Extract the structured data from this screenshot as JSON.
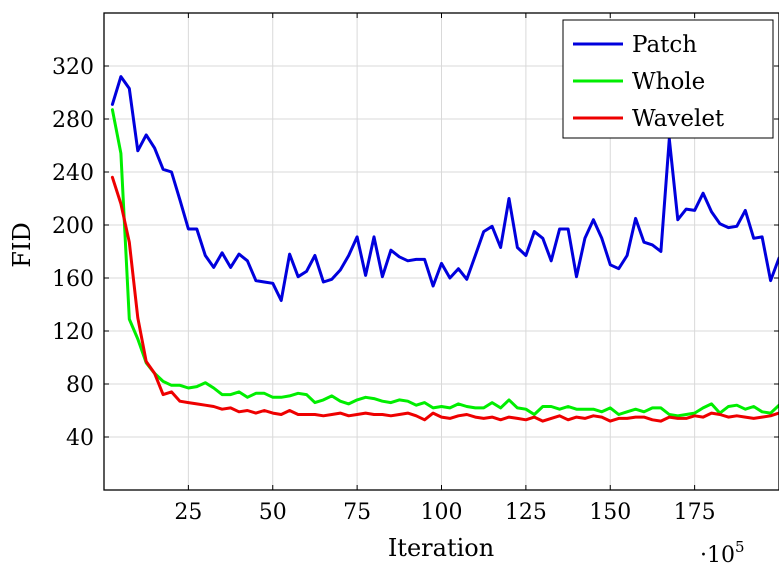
{
  "chart_data": {
    "type": "line",
    "xlabel": "Iteration",
    "ylabel": "FID",
    "x_multiplier_label": "·10",
    "x_multiplier_exp": "5",
    "xlim": [
      0,
      200
    ],
    "ylim": [
      0,
      360
    ],
    "xticks": [
      25,
      50,
      75,
      100,
      125,
      150,
      175
    ],
    "yticks": [
      40,
      80,
      120,
      160,
      200,
      240,
      280,
      320
    ],
    "grid": true,
    "legend_position": "top-right",
    "x": [
      2.5,
      5,
      7.5,
      10,
      12.5,
      15,
      17.5,
      20,
      22.5,
      25,
      27.5,
      30,
      32.5,
      35,
      37.5,
      40,
      42.5,
      45,
      47.5,
      50,
      52.5,
      55,
      57.5,
      60,
      62.5,
      65,
      67.5,
      70,
      72.5,
      75,
      77.5,
      80,
      82.5,
      85,
      87.5,
      90,
      92.5,
      95,
      97.5,
      100,
      102.5,
      105,
      107.5,
      110,
      112.5,
      115,
      117.5,
      120,
      122.5,
      125,
      127.5,
      130,
      132.5,
      135,
      137.5,
      140,
      142.5,
      145,
      147.5,
      150,
      152.5,
      155,
      157.5,
      160,
      162.5,
      165,
      167.5,
      170,
      172.5,
      175,
      177.5,
      180,
      182.5,
      185,
      187.5,
      190,
      192.5,
      195,
      197.5,
      200
    ],
    "series": [
      {
        "name": "Patch",
        "color": "#0000dd",
        "values": [
          291,
          312,
          303,
          256,
          268,
          258,
          242,
          240,
          219,
          197,
          197,
          177,
          168,
          179,
          168,
          178,
          173,
          158,
          157,
          156,
          143,
          178,
          161,
          165,
          177,
          157,
          159,
          166,
          177,
          191,
          162,
          191,
          161,
          181,
          176,
          173,
          174,
          174,
          154,
          171,
          160,
          167,
          159,
          177,
          195,
          199,
          183,
          220,
          183,
          177,
          195,
          190,
          173,
          197,
          197,
          161,
          190,
          204,
          190,
          170,
          167,
          177,
          205,
          187,
          185,
          180,
          265,
          204,
          212,
          211,
          224,
          210,
          201,
          198,
          199,
          211,
          190,
          191,
          158,
          175
        ]
      },
      {
        "name": "Whole",
        "color": "#00ee00",
        "values": [
          287,
          254,
          129,
          114,
          96,
          88,
          82,
          79,
          79,
          77,
          78,
          81,
          77,
          72,
          72,
          74,
          70,
          73,
          73,
          70,
          70,
          71,
          73,
          72,
          66,
          68,
          71,
          67,
          65,
          68,
          70,
          69,
          67,
          66,
          68,
          67,
          64,
          66,
          62,
          63,
          62,
          65,
          63,
          62,
          62,
          66,
          62,
          68,
          62,
          61,
          57,
          63,
          63,
          61,
          63,
          61,
          61,
          61,
          59,
          62,
          57,
          59,
          61,
          59,
          62,
          62,
          57,
          56,
          57,
          58,
          62,
          65,
          58,
          63,
          64,
          61,
          63,
          59,
          58,
          64
        ]
      },
      {
        "name": "Wavelet",
        "color": "#ee0000",
        "values": [
          236,
          216,
          187,
          130,
          97,
          88,
          72,
          74,
          67,
          66,
          65,
          64,
          63,
          61,
          62,
          59,
          60,
          58,
          60,
          58,
          57,
          60,
          57,
          57,
          57,
          56,
          57,
          58,
          56,
          57,
          58,
          57,
          57,
          56,
          57,
          58,
          56,
          53,
          58,
          55,
          54,
          56,
          57,
          55,
          54,
          55,
          53,
          55,
          54,
          53,
          55,
          52,
          54,
          56,
          53,
          55,
          54,
          56,
          55,
          52,
          54,
          54,
          55,
          55,
          53,
          52,
          55,
          54,
          54,
          56,
          55,
          58,
          57,
          55,
          56,
          55,
          54,
          55,
          56,
          58
        ]
      }
    ]
  }
}
